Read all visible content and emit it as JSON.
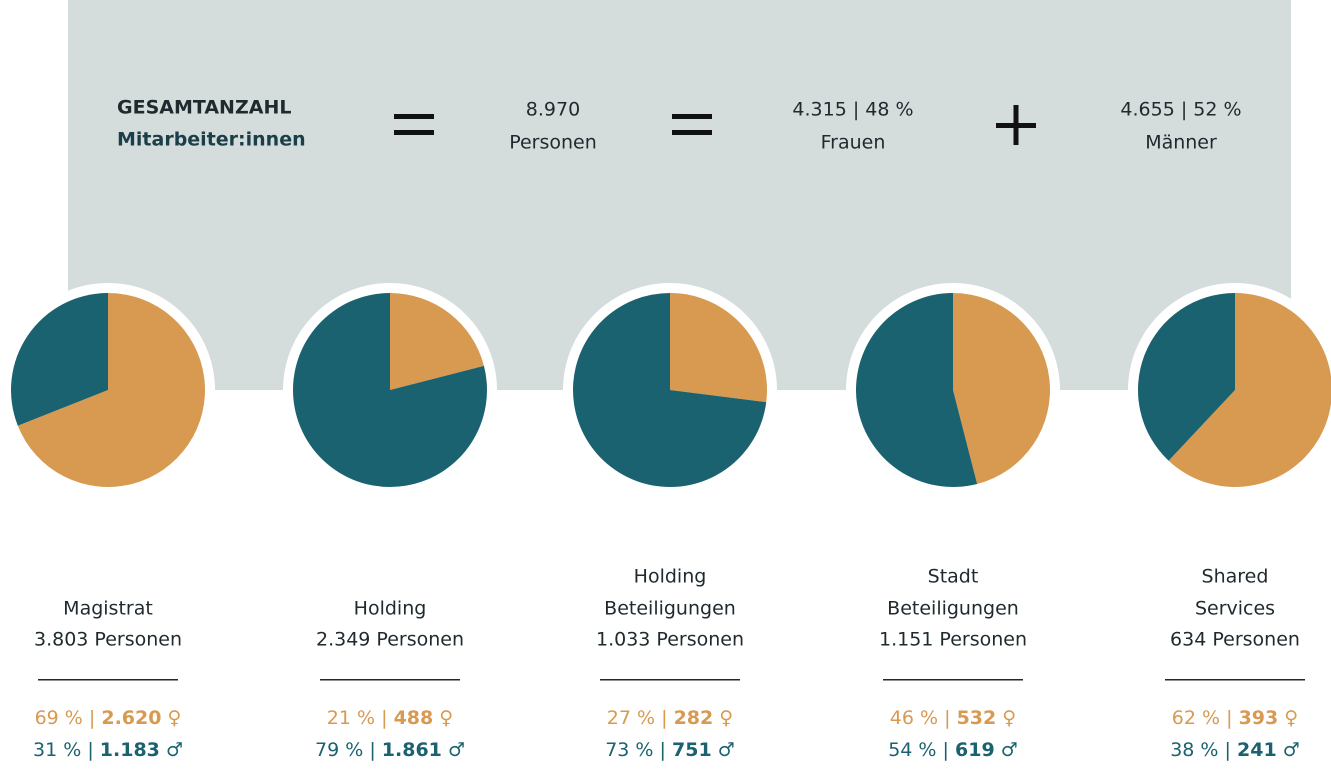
{
  "header": {
    "label_lines": [
      "GESAMTANZAHL",
      "Mitarbeiter:innen"
    ],
    "total": "8.970",
    "total_unit": "Personen",
    "women": "4.315 | 48 %",
    "women_label": "Frauen",
    "men": "4.655 | 52 %",
    "men_label": "Männer"
  },
  "separator": "|",
  "symbols": [
    "♀",
    "♂"
  ],
  "chart_data": [
    {
      "type": "pie",
      "title": [
        "Magistrat"
      ],
      "subtitle": "3.803 Personen",
      "values": [
        69,
        31
      ],
      "value_labels": [
        "69 %",
        "31 %"
      ],
      "counts": [
        2620,
        1183
      ],
      "count_labels": [
        "2.620",
        "1.183"
      ],
      "colors": [
        "#d89a50",
        "#1b6270"
      ]
    },
    {
      "type": "pie",
      "title": [
        "Holding"
      ],
      "subtitle": "2.349 Personen",
      "values": [
        21,
        79
      ],
      "value_labels": [
        "21 %",
        "79 %"
      ],
      "counts": [
        488,
        1861
      ],
      "count_labels": [
        "488",
        "1.861"
      ],
      "colors": [
        "#d89a50",
        "#1b6270"
      ]
    },
    {
      "type": "pie",
      "title": [
        "Holding",
        "Beteiligungen"
      ],
      "subtitle": "1.033 Personen",
      "values": [
        27,
        73
      ],
      "value_labels": [
        "27 %",
        "73 %"
      ],
      "counts": [
        282,
        751
      ],
      "count_labels": [
        "282",
        "751"
      ],
      "colors": [
        "#d89a50",
        "#1b6270"
      ]
    },
    {
      "type": "pie",
      "title": [
        "Stadt",
        "Beteiligungen"
      ],
      "subtitle": "1.151 Personen",
      "values": [
        46,
        54
      ],
      "value_labels": [
        "46 %",
        "54 %"
      ],
      "counts": [
        532,
        619
      ],
      "count_labels": [
        "532",
        "619"
      ],
      "colors": [
        "#d89a50",
        "#1b6270"
      ]
    },
    {
      "type": "pie",
      "title": [
        "Shared",
        "Services"
      ],
      "subtitle": "634 Personen",
      "values": [
        62,
        38
      ],
      "value_labels": [
        "62 %",
        "38 %"
      ],
      "counts": [
        393,
        241
      ],
      "count_labels": [
        "393",
        "241"
      ],
      "colors": [
        "#d89a50",
        "#1b6270"
      ]
    }
  ]
}
